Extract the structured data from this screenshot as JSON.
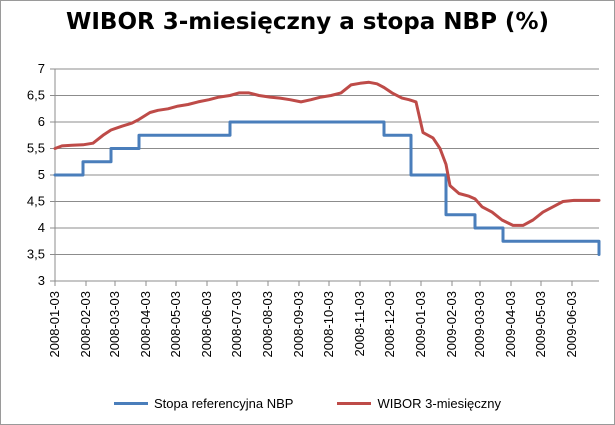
{
  "chart_data": {
    "type": "line",
    "title": "WIBOR 3-miesięczny a stopa NBP (%)",
    "xlabel": "",
    "ylabel": "",
    "ylim": [
      3,
      7
    ],
    "yticks": [
      "3",
      "3,5",
      "4",
      "4,5",
      "5",
      "5,5",
      "6",
      "6,5",
      "7"
    ],
    "x_range": [
      "2008-01-03",
      "2009-06-30"
    ],
    "x_ticks": [
      "2008-01-03",
      "2008-02-03",
      "2008-03-03",
      "2008-04-03",
      "2008-05-03",
      "2008-06-03",
      "2008-07-03",
      "2008-08-03",
      "2008-09-03",
      "2008-10-03",
      "2008-11-03",
      "2008-12-03",
      "2009-01-03",
      "2009-02-03",
      "2009-03-03",
      "2009-04-03",
      "2009-05-03",
      "2009-06-03"
    ],
    "grid": {
      "horizontal": true,
      "vertical": false
    },
    "legend_position": "bottom",
    "series": [
      {
        "name": "Stopa referencyjna NBP",
        "color": "#4a7ebb",
        "step": true,
        "x": [
          "2008-01-03",
          "2008-01-31",
          "2008-02-28",
          "2008-03-27",
          "2008-06-26",
          "2008-11-27",
          "2008-12-24",
          "2009-01-28",
          "2009-02-26",
          "2009-03-26",
          "2009-06-25",
          "2009-06-30"
        ],
        "y": [
          5.0,
          5.25,
          5.5,
          5.75,
          6.0,
          5.75,
          5.0,
          4.25,
          4.0,
          3.75,
          3.75,
          3.5
        ]
      },
      {
        "name": "WIBOR 3-miesięczny",
        "color": "#be4b48",
        "step": false,
        "x": [
          "2008-01-03",
          "2008-01-10",
          "2008-01-20",
          "2008-01-31",
          "2008-02-10",
          "2008-02-20",
          "2008-02-28",
          "2008-03-10",
          "2008-03-20",
          "2008-03-27",
          "2008-04-07",
          "2008-04-15",
          "2008-04-25",
          "2008-05-05",
          "2008-05-15",
          "2008-05-25",
          "2008-06-05",
          "2008-06-15",
          "2008-06-26",
          "2008-07-05",
          "2008-07-15",
          "2008-07-25",
          "2008-08-05",
          "2008-08-15",
          "2008-08-25",
          "2008-09-05",
          "2008-09-15",
          "2008-09-25",
          "2008-10-05",
          "2008-10-15",
          "2008-10-25",
          "2008-11-03",
          "2008-11-12",
          "2008-11-20",
          "2008-11-27",
          "2008-12-05",
          "2008-12-15",
          "2008-12-22",
          "2008-12-29",
          "2009-01-05",
          "2009-01-15",
          "2009-01-22",
          "2009-01-28",
          "2009-02-01",
          "2009-02-10",
          "2009-02-20",
          "2009-02-26",
          "2009-03-05",
          "2009-03-15",
          "2009-03-25",
          "2009-04-05",
          "2009-04-15",
          "2009-04-25",
          "2009-05-05",
          "2009-05-15",
          "2009-05-25",
          "2009-06-05",
          "2009-06-15",
          "2009-06-30"
        ],
        "y": [
          5.5,
          5.55,
          5.56,
          5.57,
          5.6,
          5.75,
          5.85,
          5.92,
          5.98,
          6.05,
          6.18,
          6.22,
          6.25,
          6.3,
          6.33,
          6.38,
          6.42,
          6.47,
          6.5,
          6.55,
          6.55,
          6.5,
          6.47,
          6.45,
          6.42,
          6.38,
          6.42,
          6.47,
          6.5,
          6.55,
          6.7,
          6.73,
          6.75,
          6.72,
          6.65,
          6.55,
          6.45,
          6.42,
          6.38,
          5.8,
          5.7,
          5.5,
          5.2,
          4.8,
          4.65,
          4.6,
          4.55,
          4.4,
          4.3,
          4.15,
          4.05,
          4.05,
          4.15,
          4.3,
          4.4,
          4.5,
          4.52,
          4.52,
          4.52
        ]
      }
    ]
  }
}
